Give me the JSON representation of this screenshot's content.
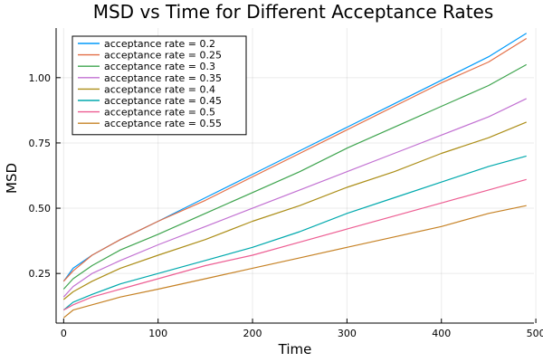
{
  "chart_data": {
    "type": "line",
    "title": "MSD vs Time for Different Acceptance Rates",
    "xlabel": "Time",
    "ylabel": "MSD",
    "xlim": [
      -8,
      498
    ],
    "ylim": [
      0.06,
      1.19
    ],
    "xticks": [
      0,
      100,
      200,
      300,
      400,
      500
    ],
    "yticks": [
      0.25,
      0.5,
      0.75,
      1.0
    ],
    "xtick_labels": [
      "0",
      "100",
      "200",
      "300",
      "400",
      "500"
    ],
    "ytick_labels": [
      "0.25",
      "0.50",
      "0.75",
      "1.00"
    ],
    "grid": true,
    "legend_position": "top-left",
    "x": [
      0,
      10,
      30,
      60,
      100,
      150,
      200,
      250,
      300,
      350,
      400,
      450,
      490
    ],
    "series": [
      {
        "name": "acceptance rate = 0.2",
        "color": "#009AFA",
        "values": [
          0.22,
          0.27,
          0.32,
          0.38,
          0.45,
          0.54,
          0.63,
          0.72,
          0.81,
          0.9,
          0.99,
          1.08,
          1.17
        ]
      },
      {
        "name": "acceptance rate = 0.25",
        "color": "#E36F47",
        "values": [
          0.22,
          0.26,
          0.32,
          0.38,
          0.45,
          0.53,
          0.62,
          0.71,
          0.8,
          0.89,
          0.98,
          1.06,
          1.15
        ]
      },
      {
        "name": "acceptance rate = 0.3",
        "color": "#3EA44E",
        "values": [
          0.19,
          0.23,
          0.28,
          0.34,
          0.4,
          0.48,
          0.56,
          0.64,
          0.73,
          0.81,
          0.89,
          0.97,
          1.05
        ]
      },
      {
        "name": "acceptance rate = 0.35",
        "color": "#C271D2",
        "values": [
          0.16,
          0.2,
          0.25,
          0.3,
          0.36,
          0.43,
          0.5,
          0.57,
          0.64,
          0.71,
          0.78,
          0.85,
          0.92
        ]
      },
      {
        "name": "acceptance rate = 0.4",
        "color": "#AC8E18",
        "values": [
          0.15,
          0.18,
          0.22,
          0.27,
          0.32,
          0.38,
          0.45,
          0.51,
          0.58,
          0.64,
          0.71,
          0.77,
          0.83
        ]
      },
      {
        "name": "acceptance rate = 0.45",
        "color": "#00A9AD",
        "values": [
          0.11,
          0.14,
          0.17,
          0.21,
          0.25,
          0.3,
          0.35,
          0.41,
          0.48,
          0.54,
          0.6,
          0.66,
          0.7
        ]
      },
      {
        "name": "acceptance rate = 0.5",
        "color": "#ED5E93",
        "values": [
          0.11,
          0.13,
          0.16,
          0.19,
          0.23,
          0.28,
          0.32,
          0.37,
          0.42,
          0.47,
          0.52,
          0.57,
          0.61
        ]
      },
      {
        "name": "acceptance rate = 0.55",
        "color": "#C68225",
        "values": [
          0.08,
          0.11,
          0.13,
          0.16,
          0.19,
          0.23,
          0.27,
          0.31,
          0.35,
          0.39,
          0.43,
          0.48,
          0.51
        ]
      }
    ]
  }
}
